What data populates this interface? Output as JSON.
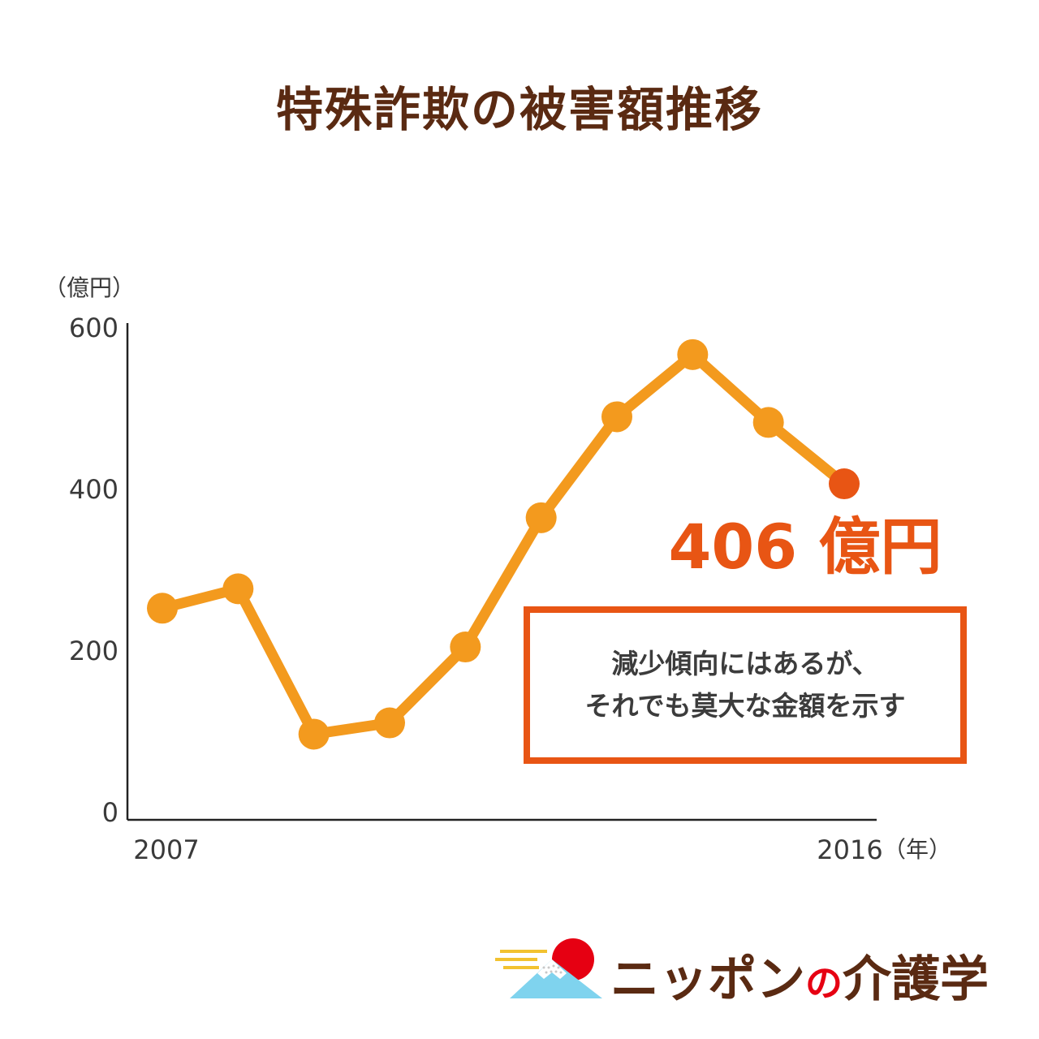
{
  "chart_data": {
    "type": "line",
    "title": "特殊詐欺の被害額推移",
    "ylabel": "（億円）",
    "xlabel": "（年）",
    "ylim": [
      0,
      600
    ],
    "yticks": [
      "0",
      "200",
      "400",
      "600"
    ],
    "x": [
      2007,
      2008,
      2009,
      2010,
      2011,
      2012,
      2013,
      2014,
      2015,
      2016
    ],
    "x_tick_labels": [
      "2007",
      "2016"
    ],
    "values": [
      252,
      276,
      96,
      110,
      204,
      364,
      489,
      566,
      482,
      406
    ],
    "color": "#f39a1e",
    "highlight_color": "#e85514",
    "annotation": {
      "value_label": "406 億円",
      "text_lines": [
        "減少傾向にはあるが、",
        "それでも莫大な金額を示す"
      ]
    },
    "grid": false,
    "legend": "none"
  },
  "logo": {
    "text_main": "ニッポン",
    "text_no": "の",
    "text_tail": "介護学"
  }
}
